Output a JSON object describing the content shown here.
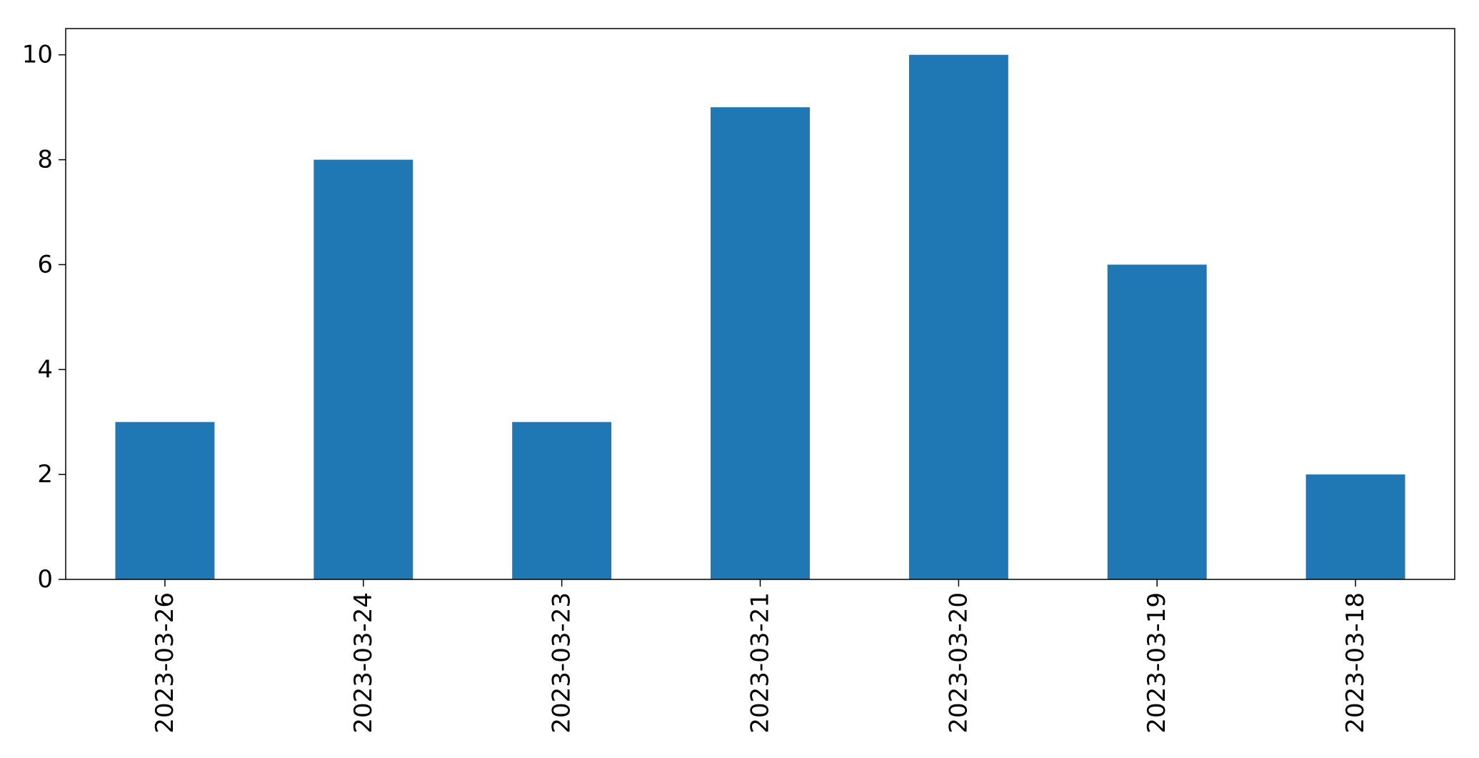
{
  "chart_data": {
    "type": "bar",
    "categories": [
      "2023-03-26",
      "2023-03-24",
      "2023-03-23",
      "2023-03-21",
      "2023-03-20",
      "2023-03-19",
      "2023-03-18"
    ],
    "values": [
      3,
      8,
      3,
      9,
      10,
      6,
      2
    ],
    "yticks": [
      "0",
      "2",
      "4",
      "6",
      "8",
      "10"
    ],
    "ylim": [
      0,
      10.5
    ],
    "title": "",
    "xlabel": "",
    "ylabel": "",
    "grid": false,
    "legend": false,
    "bar_color": "#1f77b4"
  }
}
